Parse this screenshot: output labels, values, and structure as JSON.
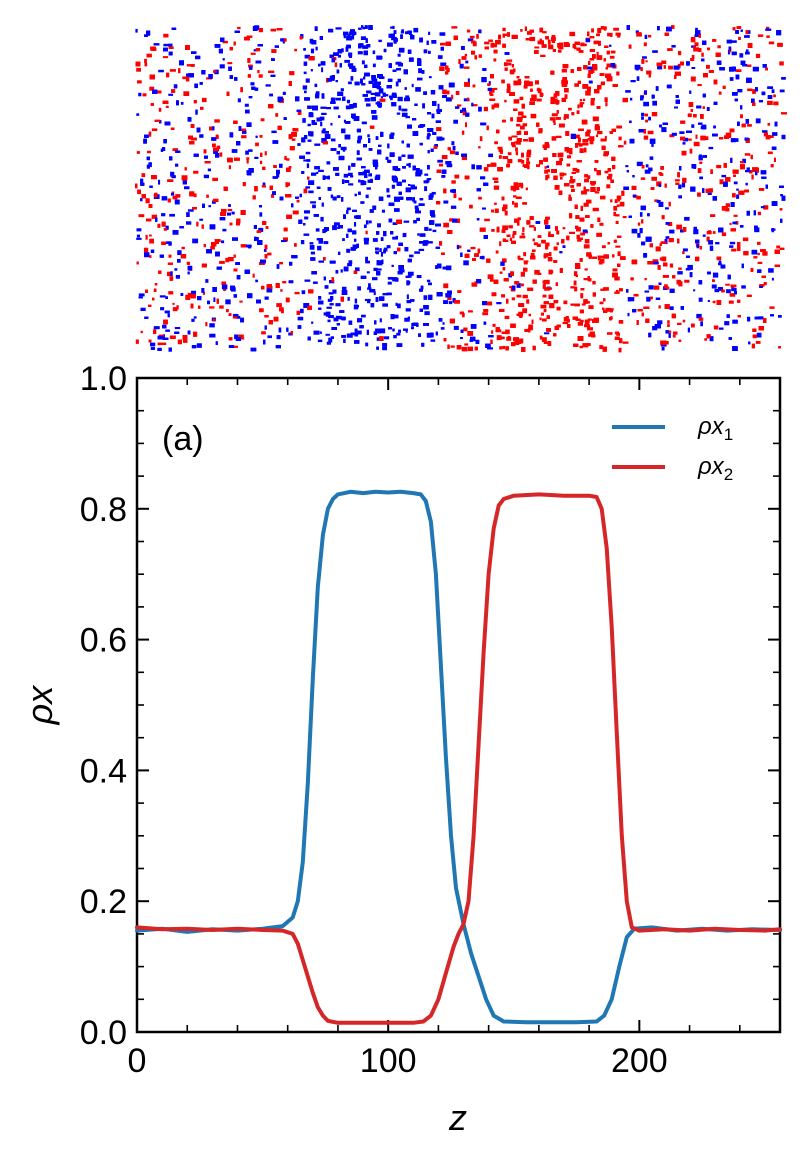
{
  "snapshot": {
    "description_colors": {
      "species1": "#0000ff",
      "species2": "#ff0000",
      "background": "#ffffff"
    },
    "bands": [
      {
        "species": 1,
        "z_start": 66,
        "z_end": 118
      },
      {
        "species": 2,
        "z_start": 140,
        "z_end": 192
      }
    ]
  },
  "chart_data": {
    "type": "line",
    "panel_label": "(a)",
    "xlabel": "z",
    "ylabel": "ρx",
    "xlim": [
      0,
      256
    ],
    "ylim": [
      0.0,
      1.0
    ],
    "xticks": [
      0,
      100,
      200
    ],
    "xtick_labels": [
      "0",
      "100",
      "200"
    ],
    "yticks": [
      0.0,
      0.2,
      0.4,
      0.6,
      0.8,
      1.0
    ],
    "ytick_labels": [
      "0.0",
      "0.2",
      "0.4",
      "0.6",
      "0.8",
      "1.0"
    ],
    "x_minor_step": 20,
    "y_minor_step": 0.05,
    "legend": {
      "position": "top-right",
      "entries": [
        {
          "base": "ρx",
          "sub": "1",
          "color": "#1f77b4"
        },
        {
          "base": "ρx",
          "sub": "2",
          "color": "#d62728"
        }
      ]
    },
    "series": [
      {
        "name": "ρx1",
        "color": "#1f77b4",
        "points": [
          [
            0,
            0.155
          ],
          [
            10,
            0.158
          ],
          [
            20,
            0.153
          ],
          [
            30,
            0.157
          ],
          [
            40,
            0.155
          ],
          [
            50,
            0.158
          ],
          [
            58,
            0.162
          ],
          [
            62,
            0.175
          ],
          [
            64,
            0.2
          ],
          [
            66,
            0.26
          ],
          [
            68,
            0.38
          ],
          [
            70,
            0.54
          ],
          [
            72,
            0.68
          ],
          [
            74,
            0.76
          ],
          [
            76,
            0.8
          ],
          [
            78,
            0.815
          ],
          [
            80,
            0.822
          ],
          [
            85,
            0.826
          ],
          [
            90,
            0.824
          ],
          [
            95,
            0.826
          ],
          [
            100,
            0.825
          ],
          [
            105,
            0.826
          ],
          [
            110,
            0.824
          ],
          [
            113,
            0.822
          ],
          [
            115,
            0.812
          ],
          [
            117,
            0.78
          ],
          [
            119,
            0.7
          ],
          [
            121,
            0.56
          ],
          [
            123,
            0.42
          ],
          [
            125,
            0.3
          ],
          [
            127,
            0.22
          ],
          [
            130,
            0.165
          ],
          [
            133,
            0.12
          ],
          [
            136,
            0.085
          ],
          [
            139,
            0.05
          ],
          [
            142,
            0.025
          ],
          [
            146,
            0.016
          ],
          [
            155,
            0.015
          ],
          [
            165,
            0.015
          ],
          [
            175,
            0.015
          ],
          [
            183,
            0.016
          ],
          [
            186,
            0.025
          ],
          [
            189,
            0.05
          ],
          [
            192,
            0.1
          ],
          [
            195,
            0.145
          ],
          [
            198,
            0.158
          ],
          [
            205,
            0.16
          ],
          [
            215,
            0.155
          ],
          [
            225,
            0.158
          ],
          [
            235,
            0.155
          ],
          [
            245,
            0.157
          ],
          [
            256,
            0.156
          ]
        ]
      },
      {
        "name": "ρx2",
        "color": "#d62728",
        "points": [
          [
            0,
            0.16
          ],
          [
            10,
            0.157
          ],
          [
            20,
            0.158
          ],
          [
            30,
            0.156
          ],
          [
            40,
            0.158
          ],
          [
            50,
            0.156
          ],
          [
            58,
            0.155
          ],
          [
            62,
            0.15
          ],
          [
            64,
            0.135
          ],
          [
            66,
            0.11
          ],
          [
            68,
            0.085
          ],
          [
            70,
            0.06
          ],
          [
            72,
            0.038
          ],
          [
            74,
            0.025
          ],
          [
            76,
            0.017
          ],
          [
            80,
            0.014
          ],
          [
            90,
            0.014
          ],
          [
            100,
            0.014
          ],
          [
            110,
            0.014
          ],
          [
            114,
            0.016
          ],
          [
            117,
            0.025
          ],
          [
            120,
            0.05
          ],
          [
            123,
            0.09
          ],
          [
            126,
            0.13
          ],
          [
            128,
            0.15
          ],
          [
            130,
            0.165
          ],
          [
            132,
            0.2
          ],
          [
            134,
            0.3
          ],
          [
            136,
            0.44
          ],
          [
            138,
            0.58
          ],
          [
            140,
            0.7
          ],
          [
            142,
            0.77
          ],
          [
            144,
            0.805
          ],
          [
            146,
            0.815
          ],
          [
            150,
            0.82
          ],
          [
            160,
            0.822
          ],
          [
            170,
            0.82
          ],
          [
            180,
            0.82
          ],
          [
            183,
            0.818
          ],
          [
            185,
            0.8
          ],
          [
            187,
            0.74
          ],
          [
            189,
            0.62
          ],
          [
            191,
            0.46
          ],
          [
            193,
            0.3
          ],
          [
            195,
            0.2
          ],
          [
            197,
            0.16
          ],
          [
            200,
            0.155
          ],
          [
            210,
            0.157
          ],
          [
            220,
            0.155
          ],
          [
            230,
            0.158
          ],
          [
            240,
            0.156
          ],
          [
            250,
            0.155
          ],
          [
            256,
            0.157
          ]
        ]
      }
    ]
  }
}
